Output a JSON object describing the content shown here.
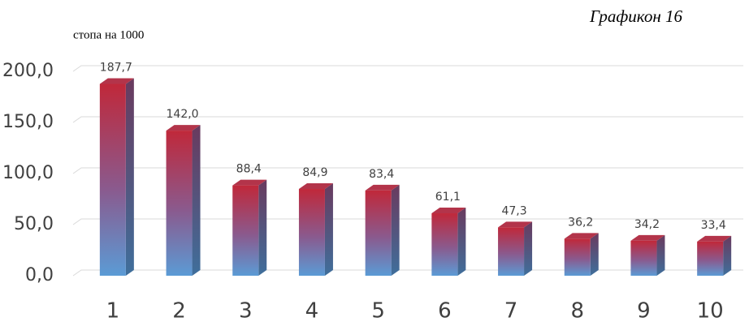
{
  "chart_data": {
    "type": "bar3d",
    "title": "Графикон 16",
    "y_label": "стопа на 1000",
    "categories": [
      "1",
      "2",
      "3",
      "4",
      "5",
      "6",
      "7",
      "8",
      "9",
      "10"
    ],
    "values": [
      187.7,
      142.0,
      88.4,
      84.9,
      83.4,
      61.1,
      47.3,
      36.2,
      34.2,
      33.4
    ],
    "value_labels": [
      "187,7",
      "142,0",
      "88,4",
      "84,9",
      "83,4",
      "61,1",
      "47,3",
      "36,2",
      "34,2",
      "33,4"
    ],
    "ylim": [
      0,
      200
    ],
    "yticks": [
      {
        "value": 0,
        "label": "0,0"
      },
      {
        "value": 50,
        "label": "50,0"
      },
      {
        "value": 100,
        "label": "100,0"
      },
      {
        "value": 150,
        "label": "150,0"
      },
      {
        "value": 200,
        "label": "200,0"
      }
    ],
    "grid": true
  }
}
